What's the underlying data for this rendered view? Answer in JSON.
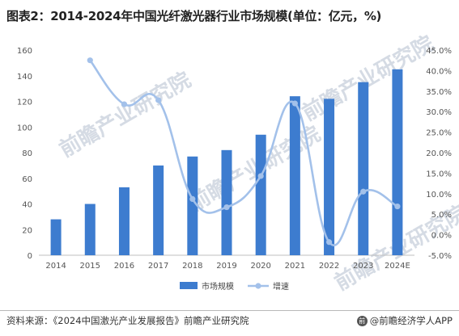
{
  "title": "图表2：2014-2024年中国光纤激光器行业市场规模(单位：亿元，%)",
  "chart_data": {
    "type": "bar",
    "categories": [
      "2014",
      "2015",
      "2016",
      "2017",
      "2018",
      "2019",
      "2020",
      "2021",
      "2022",
      "2023",
      "2024E"
    ],
    "series": [
      {
        "name": "市场规模",
        "type": "bar",
        "axis": "left",
        "color": "#3d7ccf",
        "values": [
          28,
          40,
          53,
          70,
          77,
          82,
          94,
          124,
          122,
          135,
          145
        ]
      },
      {
        "name": "增速",
        "type": "line",
        "axis": "right",
        "color": "#a3c1ea",
        "values": [
          42.5,
          31.8,
          32.8,
          8.7,
          6.7,
          14.3,
          32.0,
          -1.8,
          10.5,
          6.9
        ],
        "x": [
          "2015",
          "2016",
          "2017",
          "2018",
          "2019",
          "2020",
          "2021",
          "2022",
          "2023",
          "2024E"
        ]
      }
    ],
    "y_left": {
      "min": 0,
      "max": 160,
      "ticks": [
        "0",
        "20",
        "40",
        "60",
        "80",
        "100",
        "120",
        "140",
        "160"
      ]
    },
    "y_right": {
      "min": -5,
      "max": 45,
      "ticks": [
        "-5.0%",
        "0.0%",
        "5.0%",
        "10.0%",
        "15.0%",
        "20.0%",
        "25.0%",
        "30.0%",
        "35.0%",
        "40.0%",
        "45.0%"
      ]
    },
    "grid": false,
    "legend": "bottom"
  },
  "watermark": "前瞻产业研究院",
  "footer": {
    "source": "资料来源：《2024中国激光产业发展报告》前瞻产业研究院",
    "credit": "@前瞻经济学人APP",
    "logo_char": "前"
  }
}
